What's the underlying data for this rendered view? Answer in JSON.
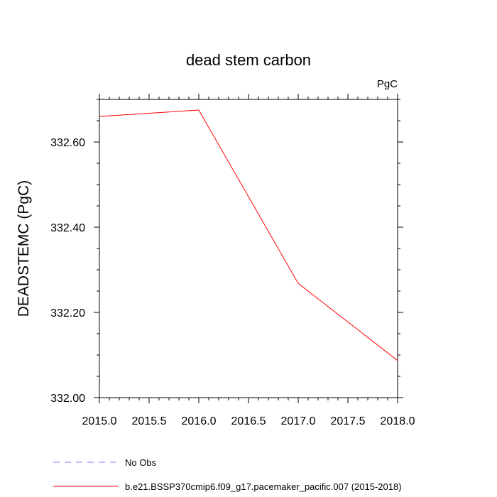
{
  "chart_data": {
    "type": "line",
    "title": "dead stem carbon",
    "units_label": "PgC",
    "ylabel": "DEADSTEMC  (PgC)",
    "xlabel": "",
    "xlim": [
      2015.0,
      2018.0
    ],
    "ylim": [
      332.0,
      332.7
    ],
    "xticks": [
      2015.0,
      2015.5,
      2016.0,
      2016.5,
      2017.0,
      2017.5,
      2018.0
    ],
    "xtick_labels": [
      "2015.0",
      "2015.5",
      "2016.0",
      "2016.5",
      "2017.0",
      "2017.5",
      "2018.0"
    ],
    "yticks": [
      332.0,
      332.2,
      332.4,
      332.6
    ],
    "ytick_labels": [
      "332.00",
      "332.20",
      "332.40",
      "332.60"
    ],
    "grid": false,
    "series": [
      {
        "name": "b.e21.BSSP370cmip6.f09_g17.pacemaker_pacific.007 (2015-2018)",
        "color": "#ff0000",
        "style": "solid",
        "x": [
          2015.0,
          2016.0,
          2017.0,
          2018.0
        ],
        "y": [
          332.66,
          332.675,
          332.268,
          332.087
        ]
      }
    ],
    "legend": [
      {
        "label": "No Obs",
        "color": "#8080ff",
        "style": "dashed"
      },
      {
        "label": "b.e21.BSSP370cmip6.f09_g17.pacemaker_pacific.007 (2015-2018)",
        "color": "#ff0000",
        "style": "solid"
      }
    ],
    "legend_placement": "bottom-left"
  }
}
